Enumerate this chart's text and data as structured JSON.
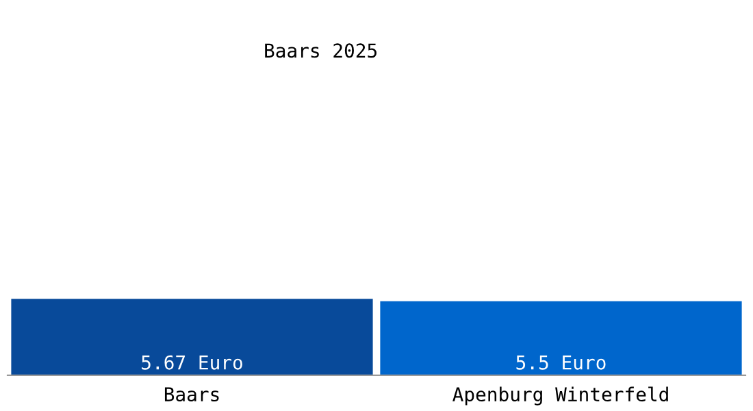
{
  "chart_data": {
    "type": "bar",
    "title": "Baars 2025",
    "categories": [
      "Baars",
      "Apenburg Winterfeld"
    ],
    "values": [
      5.67,
      5.5
    ],
    "colors": [
      "#084a9a",
      "#0066cc"
    ],
    "value_labels": [
      "5.67 Euro",
      "5.5 Euro"
    ],
    "grid": false,
    "legend": false
  }
}
